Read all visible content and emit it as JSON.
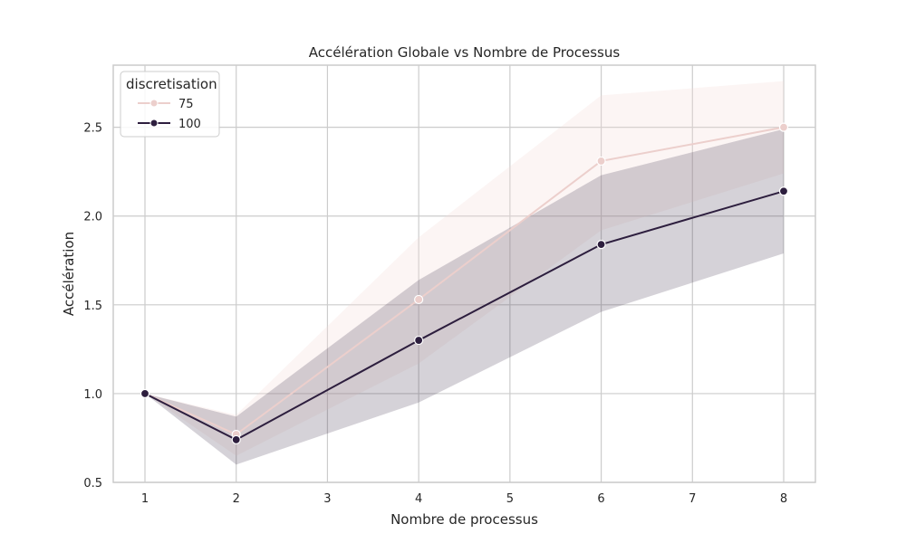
{
  "chart_data": {
    "type": "line",
    "title": "Accélération Globale vs Nombre de Processus",
    "xlabel": "Nombre de processus",
    "ylabel": "Accélération",
    "categories": [
      "1",
      "2",
      "3",
      "4",
      "5",
      "6",
      "7",
      "8"
    ],
    "yticks": [
      "0.5",
      "1.0",
      "1.5",
      "2.0",
      "2.5"
    ],
    "ylim": [
      0.5,
      2.85
    ],
    "grid": true,
    "legend": {
      "title": "discretisation",
      "placement": "top-left"
    },
    "series": [
      {
        "name": "75",
        "color": "#eccfcc",
        "band_color": "#f3dcd7",
        "x": [
          1,
          2,
          4,
          6,
          8
        ],
        "values": [
          1.0,
          0.77,
          1.53,
          2.31,
          2.5
        ],
        "lower": [
          1.0,
          0.65,
          1.17,
          1.92,
          2.24
        ],
        "upper": [
          1.0,
          0.88,
          1.88,
          2.68,
          2.76
        ]
      },
      {
        "name": "100",
        "color": "#2d1e3e",
        "band_color": "#2d1e3e",
        "x": [
          1,
          2,
          4,
          6,
          8
        ],
        "values": [
          1.0,
          0.74,
          1.3,
          1.84,
          2.14
        ],
        "lower": [
          1.0,
          0.6,
          0.95,
          1.46,
          1.79
        ],
        "upper": [
          1.0,
          0.87,
          1.64,
          2.23,
          2.49
        ]
      }
    ]
  }
}
